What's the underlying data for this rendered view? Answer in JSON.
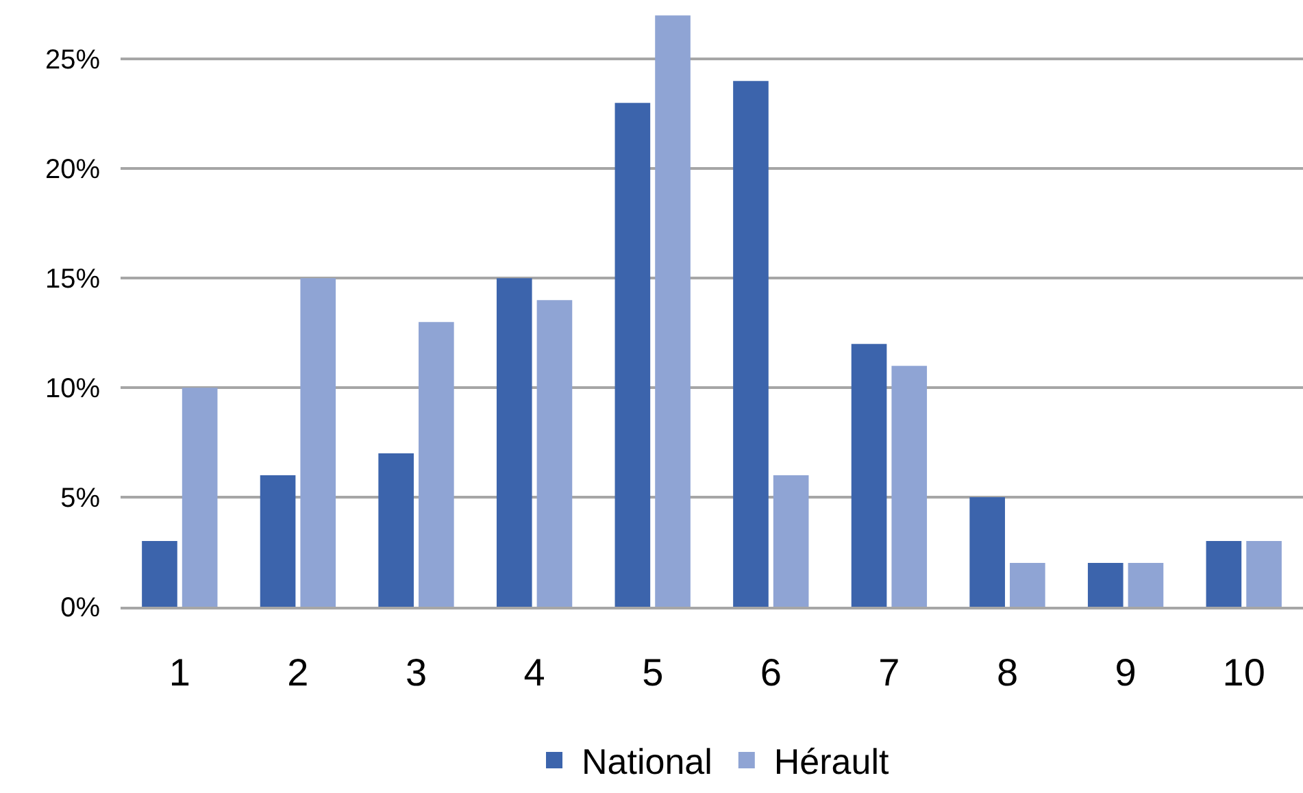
{
  "chart_data": {
    "type": "bar",
    "categories": [
      "1",
      "2",
      "3",
      "4",
      "5",
      "6",
      "7",
      "8",
      "9",
      "10"
    ],
    "series": [
      {
        "name": "National",
        "color": "#3c64ac",
        "values": [
          3,
          6,
          7,
          15,
          23,
          24,
          12,
          5,
          2,
          3
        ]
      },
      {
        "name": "Hérault",
        "color": "#8fa4d4",
        "values": [
          10,
          15,
          13,
          14,
          27,
          6,
          11,
          2,
          2,
          3
        ]
      }
    ],
    "ylim": [
      0,
      27.7
    ],
    "yticks": [
      {
        "value": 0,
        "label": "0%"
      },
      {
        "value": 5,
        "label": "5%"
      },
      {
        "value": 10,
        "label": "10%"
      },
      {
        "value": 15,
        "label": "15%"
      },
      {
        "value": 20,
        "label": "20%"
      },
      {
        "value": 25,
        "label": "25%"
      }
    ],
    "grid": "y",
    "legend": "bottom"
  }
}
